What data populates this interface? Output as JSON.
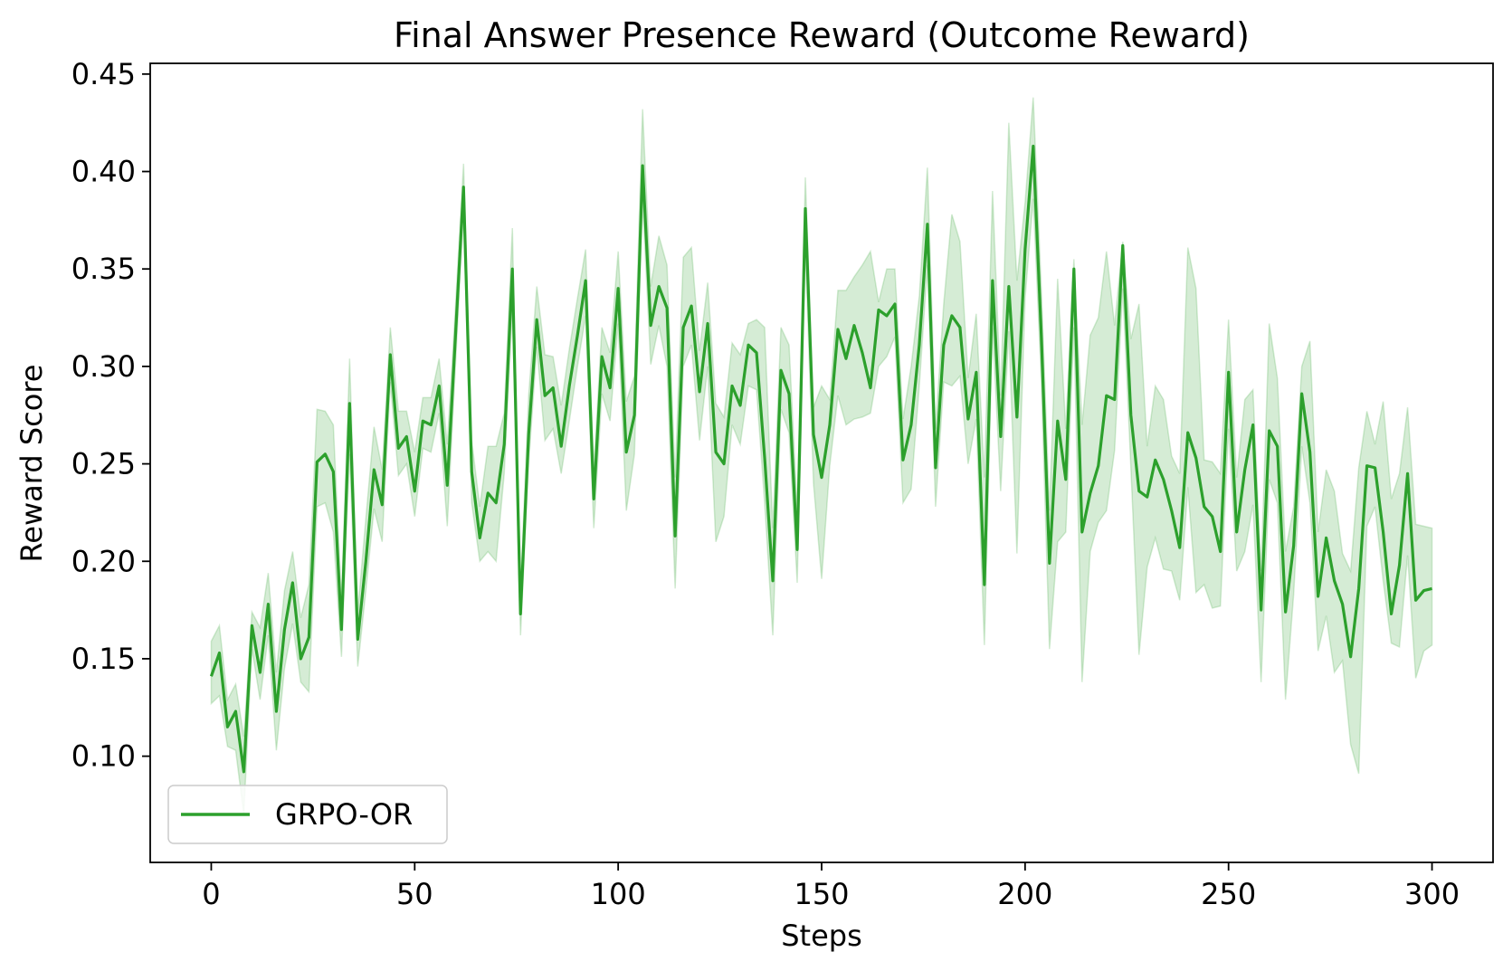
{
  "chart_data": {
    "type": "line",
    "title": "Final Answer Presence Reward (Outcome Reward)",
    "xlabel": "Steps",
    "ylabel": "Reward Score",
    "xlim": [
      -15,
      315
    ],
    "ylim": [
      0.0455,
      0.4555
    ],
    "xticks": [
      0,
      50,
      100,
      150,
      200,
      250,
      300
    ],
    "yticks": [
      0.1,
      0.15,
      0.2,
      0.25,
      0.3,
      0.35,
      0.4,
      0.45
    ],
    "xtick_labels": [
      "0",
      "50",
      "100",
      "150",
      "200",
      "250",
      "300"
    ],
    "ytick_labels": [
      "0.10",
      "0.15",
      "0.20",
      "0.25",
      "0.30",
      "0.35",
      "0.40",
      "0.45"
    ],
    "grid": false,
    "legend": {
      "position": "lower left",
      "entries": [
        "GRPO-OR"
      ]
    },
    "colors": {
      "line": "#2ca02c",
      "band": "#2ca02c"
    },
    "series": [
      {
        "name": "GRPO-OR",
        "x": [
          0,
          2,
          4,
          6,
          8,
          10,
          12,
          14,
          16,
          18,
          20,
          22,
          24,
          26,
          28,
          30,
          32,
          34,
          36,
          38,
          40,
          42,
          44,
          46,
          48,
          50,
          52,
          54,
          56,
          58,
          60,
          62,
          64,
          66,
          68,
          70,
          72,
          74,
          76,
          78,
          80,
          82,
          84,
          86,
          88,
          90,
          92,
          94,
          96,
          98,
          100,
          102,
          104,
          106,
          108,
          110,
          112,
          114,
          116,
          118,
          120,
          122,
          124,
          126,
          128,
          130,
          132,
          134,
          136,
          138,
          140,
          142,
          144,
          146,
          148,
          150,
          152,
          154,
          156,
          158,
          160,
          162,
          164,
          166,
          168,
          170,
          172,
          174,
          176,
          178,
          180,
          182,
          184,
          186,
          188,
          190,
          192,
          194,
          196,
          198,
          200,
          202,
          204,
          206,
          208,
          210,
          212,
          214,
          216,
          218,
          220,
          222,
          224,
          226,
          228,
          230,
          232,
          234,
          236,
          238,
          240,
          242,
          244,
          246,
          248,
          250,
          252,
          254,
          256,
          258,
          260,
          262,
          264,
          266,
          268,
          270,
          272,
          274,
          276,
          278,
          280,
          282,
          284,
          286,
          288,
          290,
          292,
          294,
          296,
          298,
          300
        ],
        "y": [
          0.141,
          0.153,
          0.115,
          0.123,
          0.092,
          0.167,
          0.143,
          0.178,
          0.123,
          0.165,
          0.189,
          0.15,
          0.161,
          0.251,
          0.255,
          0.246,
          0.165,
          0.281,
          0.16,
          0.2,
          0.247,
          0.229,
          0.306,
          0.258,
          0.264,
          0.236,
          0.272,
          0.27,
          0.29,
          0.239,
          0.315,
          0.392,
          0.246,
          0.212,
          0.235,
          0.23,
          0.26,
          0.35,
          0.173,
          0.265,
          0.324,
          0.285,
          0.289,
          0.259,
          0.29,
          0.316,
          0.344,
          0.232,
          0.305,
          0.289,
          0.34,
          0.256,
          0.275,
          0.403,
          0.321,
          0.341,
          0.33,
          0.213,
          0.32,
          0.331,
          0.287,
          0.322,
          0.256,
          0.25,
          0.29,
          0.28,
          0.311,
          0.307,
          0.253,
          0.19,
          0.298,
          0.286,
          0.206,
          0.381,
          0.265,
          0.243,
          0.27,
          0.319,
          0.304,
          0.321,
          0.307,
          0.289,
          0.329,
          0.326,
          0.332,
          0.252,
          0.27,
          0.311,
          0.373,
          0.248,
          0.311,
          0.326,
          0.32,
          0.273,
          0.297,
          0.188,
          0.344,
          0.264,
          0.341,
          0.274,
          0.36,
          0.413,
          0.315,
          0.199,
          0.272,
          0.242,
          0.35,
          0.215,
          0.235,
          0.249,
          0.285,
          0.283,
          0.362,
          0.275,
          0.236,
          0.233,
          0.252,
          0.242,
          0.226,
          0.207,
          0.266,
          0.253,
          0.228,
          0.223,
          0.205,
          0.297,
          0.215,
          0.247,
          0.27,
          0.175,
          0.267,
          0.259,
          0.174,
          0.208,
          0.286,
          0.256,
          0.182,
          0.212,
          0.19,
          0.178,
          0.151,
          0.186,
          0.249,
          0.248,
          0.215,
          0.173,
          0.198,
          0.245,
          0.18,
          0.185,
          0.186
        ],
        "lower": [
          0.127,
          0.131,
          0.105,
          0.103,
          0.07,
          0.155,
          0.129,
          0.162,
          0.103,
          0.145,
          0.168,
          0.138,
          0.133,
          0.228,
          0.23,
          0.215,
          0.151,
          0.255,
          0.146,
          0.185,
          0.227,
          0.21,
          0.292,
          0.244,
          0.25,
          0.223,
          0.258,
          0.256,
          0.276,
          0.218,
          0.3,
          0.38,
          0.23,
          0.2,
          0.205,
          0.2,
          0.245,
          0.33,
          0.162,
          0.25,
          0.31,
          0.262,
          0.268,
          0.245,
          0.272,
          0.3,
          0.326,
          0.217,
          0.286,
          0.272,
          0.322,
          0.226,
          0.255,
          0.385,
          0.301,
          0.321,
          0.3,
          0.186,
          0.3,
          0.311,
          0.262,
          0.3,
          0.21,
          0.223,
          0.27,
          0.26,
          0.29,
          0.288,
          0.23,
          0.162,
          0.278,
          0.266,
          0.189,
          0.361,
          0.24,
          0.191,
          0.249,
          0.285,
          0.27,
          0.273,
          0.274,
          0.276,
          0.3,
          0.305,
          0.315,
          0.23,
          0.237,
          0.29,
          0.352,
          0.228,
          0.292,
          0.29,
          0.295,
          0.25,
          0.273,
          0.157,
          0.32,
          0.236,
          0.318,
          0.204,
          0.335,
          0.386,
          0.292,
          0.155,
          0.21,
          0.215,
          0.32,
          0.138,
          0.205,
          0.22,
          0.226,
          0.257,
          0.34,
          0.248,
          0.152,
          0.197,
          0.212,
          0.196,
          0.195,
          0.18,
          0.238,
          0.184,
          0.188,
          0.176,
          0.177,
          0.268,
          0.195,
          0.205,
          0.229,
          0.138,
          0.242,
          0.23,
          0.129,
          0.183,
          0.259,
          0.23,
          0.154,
          0.172,
          0.143,
          0.149,
          0.106,
          0.091,
          0.218,
          0.228,
          0.19,
          0.158,
          0.156,
          0.203,
          0.14,
          0.154,
          0.157
        ],
        "upper": [
          0.159,
          0.167,
          0.129,
          0.137,
          0.11,
          0.174,
          0.166,
          0.194,
          0.143,
          0.185,
          0.205,
          0.171,
          0.188,
          0.278,
          0.277,
          0.27,
          0.18,
          0.304,
          0.174,
          0.222,
          0.269,
          0.247,
          0.32,
          0.277,
          0.277,
          0.256,
          0.284,
          0.284,
          0.304,
          0.26,
          0.33,
          0.404,
          0.262,
          0.228,
          0.259,
          0.259,
          0.276,
          0.371,
          0.184,
          0.285,
          0.341,
          0.306,
          0.305,
          0.28,
          0.309,
          0.335,
          0.36,
          0.247,
          0.32,
          0.307,
          0.359,
          0.282,
          0.295,
          0.432,
          0.341,
          0.367,
          0.352,
          0.243,
          0.356,
          0.361,
          0.308,
          0.343,
          0.281,
          0.274,
          0.312,
          0.306,
          0.322,
          0.324,
          0.32,
          0.217,
          0.32,
          0.311,
          0.226,
          0.397,
          0.279,
          0.29,
          0.283,
          0.339,
          0.339,
          0.346,
          0.352,
          0.359,
          0.333,
          0.35,
          0.35,
          0.273,
          0.3,
          0.336,
          0.402,
          0.268,
          0.332,
          0.378,
          0.364,
          0.294,
          0.327,
          0.243,
          0.39,
          0.285,
          0.425,
          0.344,
          0.384,
          0.438,
          0.339,
          0.226,
          0.345,
          0.268,
          0.355,
          0.27,
          0.316,
          0.325,
          0.359,
          0.321,
          0.364,
          0.314,
          0.332,
          0.259,
          0.29,
          0.283,
          0.254,
          0.245,
          0.361,
          0.34,
          0.252,
          0.251,
          0.245,
          0.324,
          0.243,
          0.283,
          0.288,
          0.195,
          0.322,
          0.294,
          0.205,
          0.228,
          0.3,
          0.313,
          0.215,
          0.247,
          0.236,
          0.204,
          0.195,
          0.248,
          0.277,
          0.26,
          0.282,
          0.232,
          0.245,
          0.279,
          0.219,
          0.218,
          0.217
        ]
      }
    ]
  }
}
